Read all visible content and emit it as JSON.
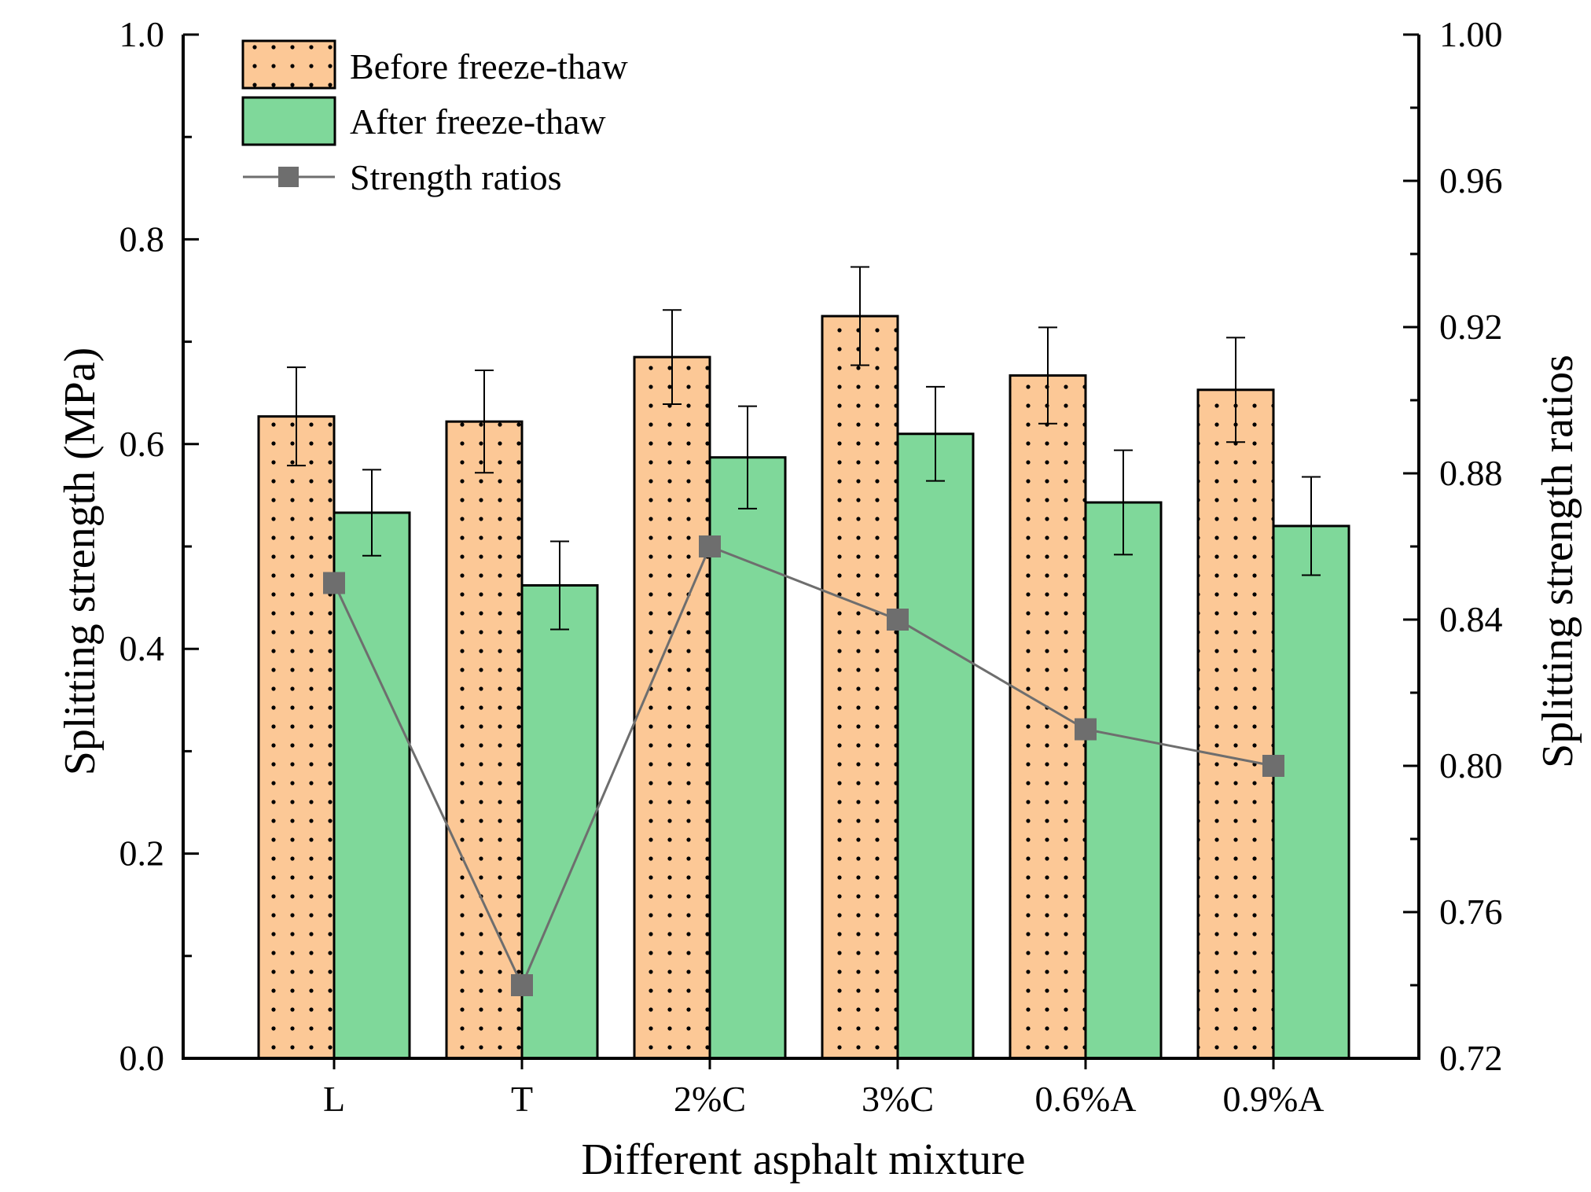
{
  "chart_data": {
    "type": "bar",
    "title": "",
    "xlabel": "Different asphalt mixture",
    "ylabel": "Splitting strength (MPa)",
    "y2label": "Splitting strength ratios",
    "categories": [
      "L",
      "T",
      "2%C",
      "3%C",
      "0.6%A",
      "0.9%A"
    ],
    "ylim": [
      0,
      1.0
    ],
    "y2lim": [
      0.72,
      1.0
    ],
    "yticks": [
      "0.0",
      "0.2",
      "0.4",
      "0.6",
      "0.8",
      "1.0"
    ],
    "y2ticks": [
      "0.72",
      "0.76",
      "0.80",
      "0.84",
      "0.88",
      "0.92",
      "0.96",
      "1.00"
    ],
    "legend_position": "top-left",
    "series": [
      {
        "name": "Before freeze-thaw",
        "kind": "bar",
        "axis": "left",
        "color": "#fcc896",
        "pattern": "dots",
        "values": [
          0.627,
          0.622,
          0.685,
          0.725,
          0.667,
          0.653
        ],
        "errors": [
          0.048,
          0.05,
          0.046,
          0.048,
          0.047,
          0.051
        ]
      },
      {
        "name": "After freeze-thaw",
        "kind": "bar",
        "axis": "left",
        "color": "#7fd89a",
        "values": [
          0.533,
          0.462,
          0.587,
          0.61,
          0.543,
          0.52
        ],
        "errors": [
          0.042,
          0.043,
          0.05,
          0.046,
          0.051,
          0.048
        ]
      },
      {
        "name": "Strength ratios",
        "kind": "line",
        "axis": "right",
        "color": "#6e6e6e",
        "marker": "square",
        "values": [
          0.85,
          0.74,
          0.86,
          0.84,
          0.81,
          0.8
        ]
      }
    ]
  }
}
